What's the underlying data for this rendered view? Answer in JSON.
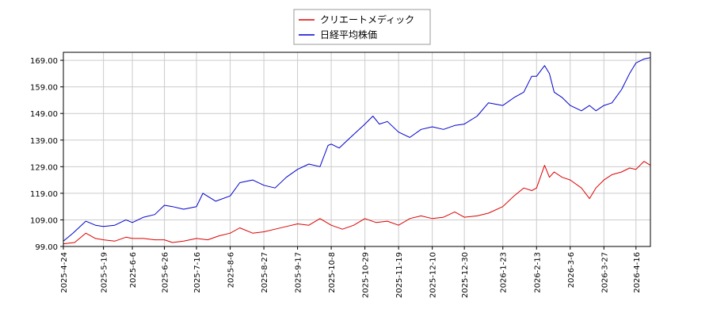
{
  "chart_data": {
    "type": "line",
    "title": "",
    "xlabel": "",
    "ylabel": "",
    "ylim": [
      99.0,
      172.0
    ],
    "y_ticks": [
      "99.00",
      "109.00",
      "119.00",
      "129.00",
      "139.00",
      "149.00",
      "159.00",
      "169.00"
    ],
    "x_tick_labels": [
      "2025-4-24",
      "2025-5-19",
      "2025-6-6",
      "2025-6-26",
      "2025-7-16",
      "2025-8-6",
      "2025-8-27",
      "2025-9-17",
      "2025-10-8",
      "2025-10-29",
      "2025-11-19",
      "2025-12-10",
      "2025-12-30",
      "2026-1-23",
      "2026-2-13",
      "2026-3-6",
      "2026-3-27",
      "2026-4-16"
    ],
    "grid": true,
    "legend_position": "top-center",
    "series": [
      {
        "name": "クリエートメディック",
        "color": "#dd0000",
        "points": [
          [
            "2025-4-24",
            100.0
          ],
          [
            "2025-5-1",
            100.5
          ],
          [
            "2025-5-8",
            104.0
          ],
          [
            "2025-5-14",
            102.0
          ],
          [
            "2025-5-19",
            101.5
          ],
          [
            "2025-5-26",
            101.0
          ],
          [
            "2025-6-2",
            102.5
          ],
          [
            "2025-6-6",
            102.0
          ],
          [
            "2025-6-13",
            102.0
          ],
          [
            "2025-6-20",
            101.5
          ],
          [
            "2025-6-26",
            101.5
          ],
          [
            "2025-7-1",
            100.5
          ],
          [
            "2025-7-8",
            101.0
          ],
          [
            "2025-7-16",
            102.0
          ],
          [
            "2025-7-23",
            101.5
          ],
          [
            "2025-7-30",
            103.0
          ],
          [
            "2025-8-6",
            104.0
          ],
          [
            "2025-8-12",
            106.0
          ],
          [
            "2025-8-20",
            104.0
          ],
          [
            "2025-8-27",
            104.5
          ],
          [
            "2025-9-3",
            105.5
          ],
          [
            "2025-9-10",
            106.5
          ],
          [
            "2025-9-17",
            107.5
          ],
          [
            "2025-9-24",
            107.0
          ],
          [
            "2025-10-1",
            109.5
          ],
          [
            "2025-10-8",
            107.0
          ],
          [
            "2025-10-15",
            105.5
          ],
          [
            "2025-10-22",
            107.0
          ],
          [
            "2025-10-29",
            109.5
          ],
          [
            "2025-11-5",
            108.0
          ],
          [
            "2025-11-12",
            108.5
          ],
          [
            "2025-11-19",
            107.0
          ],
          [
            "2025-11-26",
            109.5
          ],
          [
            "2025-12-3",
            110.5
          ],
          [
            "2025-12-10",
            109.5
          ],
          [
            "2025-12-17",
            110.0
          ],
          [
            "2025-12-24",
            112.0
          ],
          [
            "2025-12-30",
            110.0
          ],
          [
            "2026-1-7",
            110.5
          ],
          [
            "2026-1-14",
            111.5
          ],
          [
            "2026-1-23",
            114.0
          ],
          [
            "2026-1-30",
            118.0
          ],
          [
            "2026-2-5",
            121.0
          ],
          [
            "2026-2-10",
            120.0
          ],
          [
            "2026-2-13",
            121.0
          ],
          [
            "2026-2-18",
            129.5
          ],
          [
            "2026-2-21",
            125.0
          ],
          [
            "2026-2-24",
            127.0
          ],
          [
            "2026-3-1",
            125.0
          ],
          [
            "2026-3-6",
            124.0
          ],
          [
            "2026-3-13",
            121.0
          ],
          [
            "2026-3-18",
            117.0
          ],
          [
            "2026-3-22",
            121.0
          ],
          [
            "2026-3-27",
            124.0
          ],
          [
            "2026-4-1",
            126.0
          ],
          [
            "2026-4-7",
            127.0
          ],
          [
            "2026-4-12",
            128.5
          ],
          [
            "2026-4-16",
            128.0
          ],
          [
            "2026-4-21",
            131.0
          ],
          [
            "2026-4-25",
            129.5
          ]
        ]
      },
      {
        "name": "日経平均株価",
        "color": "#0000cc",
        "points": [
          [
            "2025-4-24",
            101.0
          ],
          [
            "2025-4-30",
            104.0
          ],
          [
            "2025-5-8",
            108.5
          ],
          [
            "2025-5-14",
            107.0
          ],
          [
            "2025-5-19",
            106.5
          ],
          [
            "2025-5-26",
            107.0
          ],
          [
            "2025-6-2",
            109.0
          ],
          [
            "2025-6-6",
            108.0
          ],
          [
            "2025-6-13",
            110.0
          ],
          [
            "2025-6-20",
            111.0
          ],
          [
            "2025-6-26",
            114.5
          ],
          [
            "2025-7-1",
            114.0
          ],
          [
            "2025-7-8",
            113.0
          ],
          [
            "2025-7-16",
            114.0
          ],
          [
            "2025-7-20",
            119.0
          ],
          [
            "2025-7-28",
            116.0
          ],
          [
            "2025-8-6",
            118.0
          ],
          [
            "2025-8-12",
            123.0
          ],
          [
            "2025-8-20",
            124.0
          ],
          [
            "2025-8-27",
            122.0
          ],
          [
            "2025-9-3",
            121.0
          ],
          [
            "2025-9-10",
            125.0
          ],
          [
            "2025-9-17",
            128.0
          ],
          [
            "2025-9-24",
            130.0
          ],
          [
            "2025-10-1",
            129.0
          ],
          [
            "2025-10-6",
            137.0
          ],
          [
            "2025-10-8",
            137.5
          ],
          [
            "2025-10-13",
            136.0
          ],
          [
            "2025-10-20",
            140.0
          ],
          [
            "2025-10-29",
            145.0
          ],
          [
            "2025-11-3",
            148.0
          ],
          [
            "2025-11-7",
            145.0
          ],
          [
            "2025-11-12",
            146.0
          ],
          [
            "2025-11-19",
            142.0
          ],
          [
            "2025-11-26",
            140.0
          ],
          [
            "2025-12-3",
            143.0
          ],
          [
            "2025-12-10",
            144.0
          ],
          [
            "2025-12-17",
            143.0
          ],
          [
            "2025-12-24",
            144.5
          ],
          [
            "2025-12-30",
            145.0
          ],
          [
            "2026-1-7",
            148.0
          ],
          [
            "2026-1-14",
            153.0
          ],
          [
            "2026-1-23",
            152.0
          ],
          [
            "2026-1-30",
            155.0
          ],
          [
            "2026-2-5",
            157.0
          ],
          [
            "2026-2-10",
            163.0
          ],
          [
            "2026-2-13",
            163.0
          ],
          [
            "2026-2-18",
            167.0
          ],
          [
            "2026-2-21",
            164.0
          ],
          [
            "2026-2-24",
            157.0
          ],
          [
            "2026-3-1",
            155.0
          ],
          [
            "2026-3-6",
            152.0
          ],
          [
            "2026-3-13",
            150.0
          ],
          [
            "2026-3-18",
            152.0
          ],
          [
            "2026-3-22",
            150.0
          ],
          [
            "2026-3-27",
            152.0
          ],
          [
            "2026-4-1",
            153.0
          ],
          [
            "2026-4-7",
            158.0
          ],
          [
            "2026-4-12",
            164.0
          ],
          [
            "2026-4-16",
            168.0
          ],
          [
            "2026-4-21",
            169.5
          ],
          [
            "2026-4-25",
            170.0
          ]
        ]
      }
    ]
  }
}
